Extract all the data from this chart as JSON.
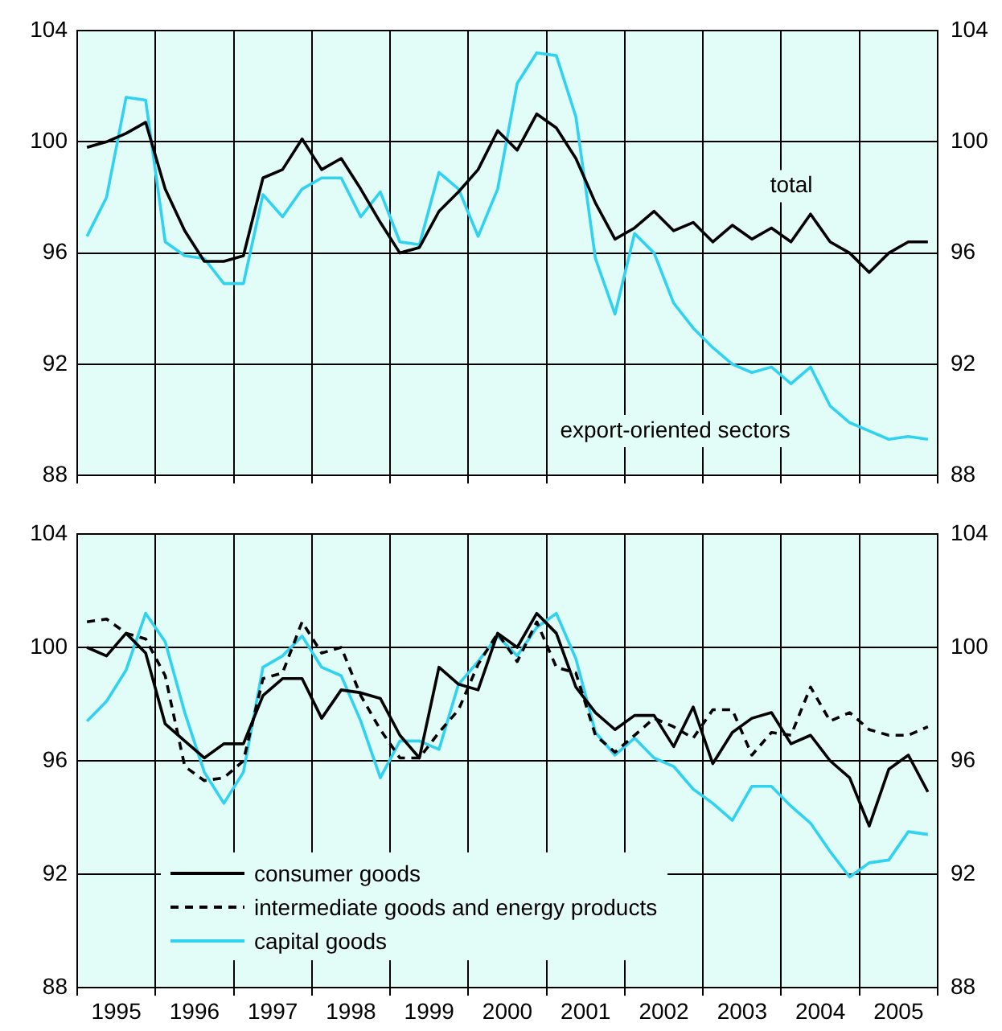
{
  "chart_data": [
    {
      "type": "line",
      "x": [
        1995.125,
        1995.375,
        1995.625,
        1995.875,
        1996.125,
        1996.375,
        1996.625,
        1996.875,
        1997.125,
        1997.375,
        1997.625,
        1997.875,
        1998.125,
        1998.375,
        1998.625,
        1998.875,
        1999.125,
        1999.375,
        1999.625,
        1999.875,
        2000.125,
        2000.375,
        2000.625,
        2000.875,
        2001.125,
        2001.375,
        2001.625,
        2001.875,
        2002.125,
        2002.375,
        2002.625,
        2002.875,
        2003.125,
        2003.375,
        2003.625,
        2003.875,
        2004.125,
        2004.375,
        2004.625,
        2004.875,
        2005.125,
        2005.375,
        2005.625,
        2005.875
      ],
      "xlim": [
        1995,
        2006
      ],
      "xticks": [
        {
          "value": 1995,
          "label": null
        },
        {
          "value": 1996,
          "label": null
        },
        {
          "value": 1997,
          "label": null
        },
        {
          "value": 1998,
          "label": null
        },
        {
          "value": 1999,
          "label": null
        },
        {
          "value": 2000,
          "label": null
        },
        {
          "value": 2001,
          "label": null
        },
        {
          "value": 2002,
          "label": null
        },
        {
          "value": 2003,
          "label": null
        },
        {
          "value": 2004,
          "label": null
        },
        {
          "value": 2005,
          "label": null
        },
        {
          "value": 2006,
          "label": null
        }
      ],
      "ylim": [
        88,
        104
      ],
      "yticks": [
        88,
        92,
        96,
        100,
        104
      ],
      "y2lim": [
        88,
        104
      ],
      "y2ticks": [
        88,
        92,
        96,
        100,
        104
      ],
      "tick_labels": "y",
      "grid": true,
      "legend": false,
      "series": [
        {
          "name": "total",
          "color": "#000000",
          "values": [
            99.8,
            100.0,
            100.3,
            100.7,
            98.3,
            96.8,
            95.7,
            95.7,
            95.9,
            98.7,
            99.0,
            100.1,
            99.0,
            99.4,
            98.3,
            97.1,
            96.0,
            96.2,
            97.5,
            98.2,
            99.0,
            100.4,
            99.7,
            101.0,
            100.5,
            99.4,
            97.8,
            96.5,
            96.9,
            97.5,
            96.8,
            97.1,
            96.4,
            97.0,
            96.5,
            96.9,
            96.4,
            97.4,
            96.4,
            96.0,
            95.3,
            96.0,
            96.4,
            96.4
          ]
        },
        {
          "name": "export-oriented sectors",
          "color": "#2fd3f0",
          "values": [
            96.6,
            98.0,
            101.6,
            101.5,
            96.4,
            95.9,
            95.8,
            94.9,
            94.9,
            98.1,
            97.3,
            98.3,
            98.7,
            98.7,
            97.3,
            98.2,
            96.4,
            96.3,
            98.9,
            98.3,
            96.6,
            98.3,
            102.1,
            103.2,
            103.1,
            100.9,
            95.8,
            93.8,
            96.7,
            96.0,
            94.2,
            93.3,
            92.6,
            92.0,
            91.7,
            91.9,
            91.3,
            91.9,
            90.5,
            89.9,
            89.6,
            89.3,
            89.4,
            89.3
          ]
        }
      ]
    },
    {
      "type": "line",
      "x": [
        1995.125,
        1995.375,
        1995.625,
        1995.875,
        1996.125,
        1996.375,
        1996.625,
        1996.875,
        1997.125,
        1997.375,
        1997.625,
        1997.875,
        1998.125,
        1998.375,
        1998.625,
        1998.875,
        1999.125,
        1999.375,
        1999.625,
        1999.875,
        2000.125,
        2000.375,
        2000.625,
        2000.875,
        2001.125,
        2001.375,
        2001.625,
        2001.875,
        2002.125,
        2002.375,
        2002.625,
        2002.875,
        2003.125,
        2003.375,
        2003.625,
        2003.875,
        2004.125,
        2004.375,
        2004.625,
        2004.875,
        2005.125,
        2005.375,
        2005.625,
        2005.875
      ],
      "xlim": [
        1995,
        2006
      ],
      "xticks": [
        {
          "value": 1995,
          "label": null
        },
        {
          "value": 1995.5,
          "label": "1995"
        },
        {
          "value": 1996,
          "label": null
        },
        {
          "value": 1996.5,
          "label": "1996"
        },
        {
          "value": 1997,
          "label": null
        },
        {
          "value": 1997.5,
          "label": "1997"
        },
        {
          "value": 1998,
          "label": null
        },
        {
          "value": 1998.5,
          "label": "1998"
        },
        {
          "value": 1999,
          "label": null
        },
        {
          "value": 1999.5,
          "label": "1999"
        },
        {
          "value": 2000,
          "label": null
        },
        {
          "value": 2000.5,
          "label": "2000"
        },
        {
          "value": 2001,
          "label": null
        },
        {
          "value": 2001.5,
          "label": "2001"
        },
        {
          "value": 2002,
          "label": null
        },
        {
          "value": 2002.5,
          "label": "2002"
        },
        {
          "value": 2003,
          "label": null
        },
        {
          "value": 2003.5,
          "label": "2003"
        },
        {
          "value": 2004,
          "label": null
        },
        {
          "value": 2004.5,
          "label": "2004"
        },
        {
          "value": 2005,
          "label": null
        },
        {
          "value": 2005.5,
          "label": "2005"
        },
        {
          "value": 2006,
          "label": null
        }
      ],
      "ylim": [
        88,
        104
      ],
      "yticks": [
        88,
        92,
        96,
        100,
        104
      ],
      "y2lim": [
        88,
        104
      ],
      "y2ticks": [
        88,
        92,
        96,
        100,
        104
      ],
      "grid": true,
      "legend": "bottom left",
      "series": [
        {
          "name": "consumer goods",
          "color": "#000000",
          "line_style": "solid",
          "values": [
            100.0,
            99.7,
            100.5,
            99.8,
            97.3,
            96.7,
            96.1,
            96.6,
            96.6,
            98.3,
            98.9,
            98.9,
            97.5,
            98.5,
            98.4,
            98.2,
            96.9,
            96.1,
            99.3,
            98.7,
            98.5,
            100.5,
            100.0,
            101.2,
            100.5,
            98.6,
            97.7,
            97.1,
            97.6,
            97.6,
            96.5,
            97.9,
            95.9,
            97.0,
            97.5,
            97.7,
            96.6,
            96.9,
            96.0,
            95.4,
            93.7,
            95.7,
            96.2,
            94.9
          ]
        },
        {
          "name": "intermediate goods and energy products",
          "color": "#000000",
          "line_style": "dashed",
          "values": [
            100.9,
            101.0,
            100.5,
            100.3,
            99.0,
            95.8,
            95.3,
            95.4,
            96.0,
            98.9,
            99.1,
            100.9,
            99.8,
            100.0,
            98.3,
            97.1,
            96.1,
            96.1,
            97.0,
            97.8,
            99.4,
            100.5,
            99.5,
            100.9,
            99.3,
            99.1,
            96.9,
            96.3,
            96.9,
            97.5,
            97.2,
            96.8,
            97.8,
            97.8,
            96.2,
            97.0,
            96.9,
            98.6,
            97.4,
            97.7,
            97.1,
            96.9,
            96.9,
            97.2
          ]
        },
        {
          "name": "capital goods",
          "color": "#2fd3f0",
          "line_style": "solid",
          "values": [
            97.4,
            98.1,
            99.2,
            101.2,
            100.2,
            97.7,
            95.6,
            94.5,
            95.6,
            99.3,
            99.7,
            100.4,
            99.3,
            99.0,
            97.4,
            95.4,
            96.7,
            96.7,
            96.4,
            98.7,
            99.5,
            100.4,
            99.7,
            100.7,
            101.2,
            99.6,
            97.0,
            96.2,
            96.8,
            96.1,
            95.8,
            95.0,
            94.5,
            93.9,
            95.1,
            95.1,
            94.4,
            93.8,
            92.8,
            91.9,
            92.4,
            92.5,
            93.5,
            93.4
          ]
        }
      ]
    }
  ]
}
